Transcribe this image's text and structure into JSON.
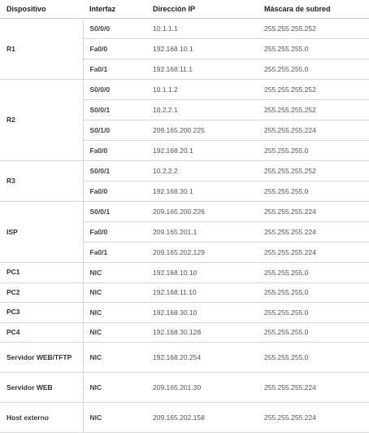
{
  "table": {
    "headers": {
      "device": "Dispositivo",
      "interface": "Interfaz",
      "ip": "Dirección IP",
      "mask": "Máscara de subred"
    },
    "groups": [
      {
        "device": "R1",
        "rows": [
          {
            "interface": "S0/0/0",
            "ip": "10.1.1.1",
            "mask": "255.255.255.252"
          },
          {
            "interface": "Fa0/0",
            "ip": "192.168.10.1",
            "mask": "255.255.255.0"
          },
          {
            "interface": "Fa0/1",
            "ip": "192.168.11.1",
            "mask": "255.255.255.0"
          }
        ]
      },
      {
        "device": "R2",
        "rows": [
          {
            "interface": "S0/0/0",
            "ip": "10.1.1.2",
            "mask": "255.255.255.252"
          },
          {
            "interface": "S0/0/1",
            "ip": "10.2.2.1",
            "mask": "255.255.255.252"
          },
          {
            "interface": "S0/1/0",
            "ip": "209.165.200.225",
            "mask": "255.255.255.224"
          },
          {
            "interface": "Fa0/0",
            "ip": "192.168.20.1",
            "mask": "255.255.255.0"
          }
        ]
      },
      {
        "device": "R3",
        "rows": [
          {
            "interface": "S0/0/1",
            "ip": "10.2.2.2",
            "mask": "255.255.255.252"
          },
          {
            "interface": "Fa0/0",
            "ip": "192.168.30.1",
            "mask": "255.255.255.0"
          }
        ]
      },
      {
        "device": "ISP",
        "rows": [
          {
            "interface": "S0/0/1",
            "ip": "209.165.200.226",
            "mask": "255.255.255.224"
          },
          {
            "interface": "Fa0/0",
            "ip": "209.165.201.1",
            "mask": "255.255.255.224"
          },
          {
            "interface": "Fa0/1",
            "ip": "209.165.202.129",
            "mask": "255.255.255.224"
          }
        ]
      },
      {
        "device": "PC1",
        "rows": [
          {
            "interface": "NIC",
            "ip": "192.168.10.10",
            "mask": "255.255.255.0"
          }
        ]
      },
      {
        "device": "PC2",
        "rows": [
          {
            "interface": "NIC",
            "ip": "192.168.11.10",
            "mask": "255.255.255.0"
          }
        ]
      },
      {
        "device": "PC3",
        "rows": [
          {
            "interface": "NIC",
            "ip": "192.168.30.10",
            "mask": "255.255.255.0"
          }
        ]
      },
      {
        "device": "PC4",
        "rows": [
          {
            "interface": "NIC",
            "ip": "192.168.30.128",
            "mask": "255.255.255.0"
          }
        ]
      },
      {
        "device": "Servidor WEB/TFTP",
        "rows": [
          {
            "interface": "NIC",
            "ip": "192.168.20.254",
            "mask": "255.255.255.0"
          }
        ]
      },
      {
        "device": "Servidor WEB",
        "rows": [
          {
            "interface": "NIC",
            "ip": "209.165.201.30",
            "mask": "255.255.255.224"
          }
        ]
      },
      {
        "device": "Host externo",
        "rows": [
          {
            "interface": "NIC",
            "ip": "209.165.202.158",
            "mask": "255.255.255.224"
          }
        ]
      }
    ]
  }
}
